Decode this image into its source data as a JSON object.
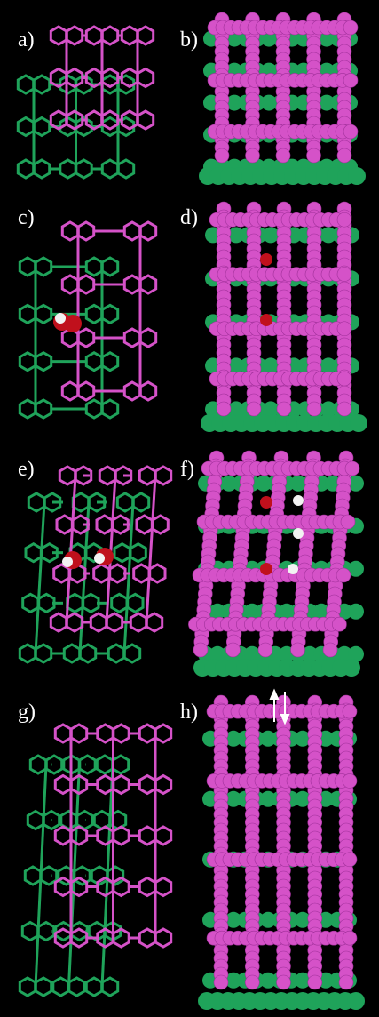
{
  "panels": [
    {
      "label": "a)"
    },
    {
      "label": "b)"
    },
    {
      "label": "c)"
    },
    {
      "label": "d)"
    },
    {
      "label": "e)"
    },
    {
      "label": "f)"
    },
    {
      "label": "g)"
    },
    {
      "label": "h)"
    }
  ]
}
